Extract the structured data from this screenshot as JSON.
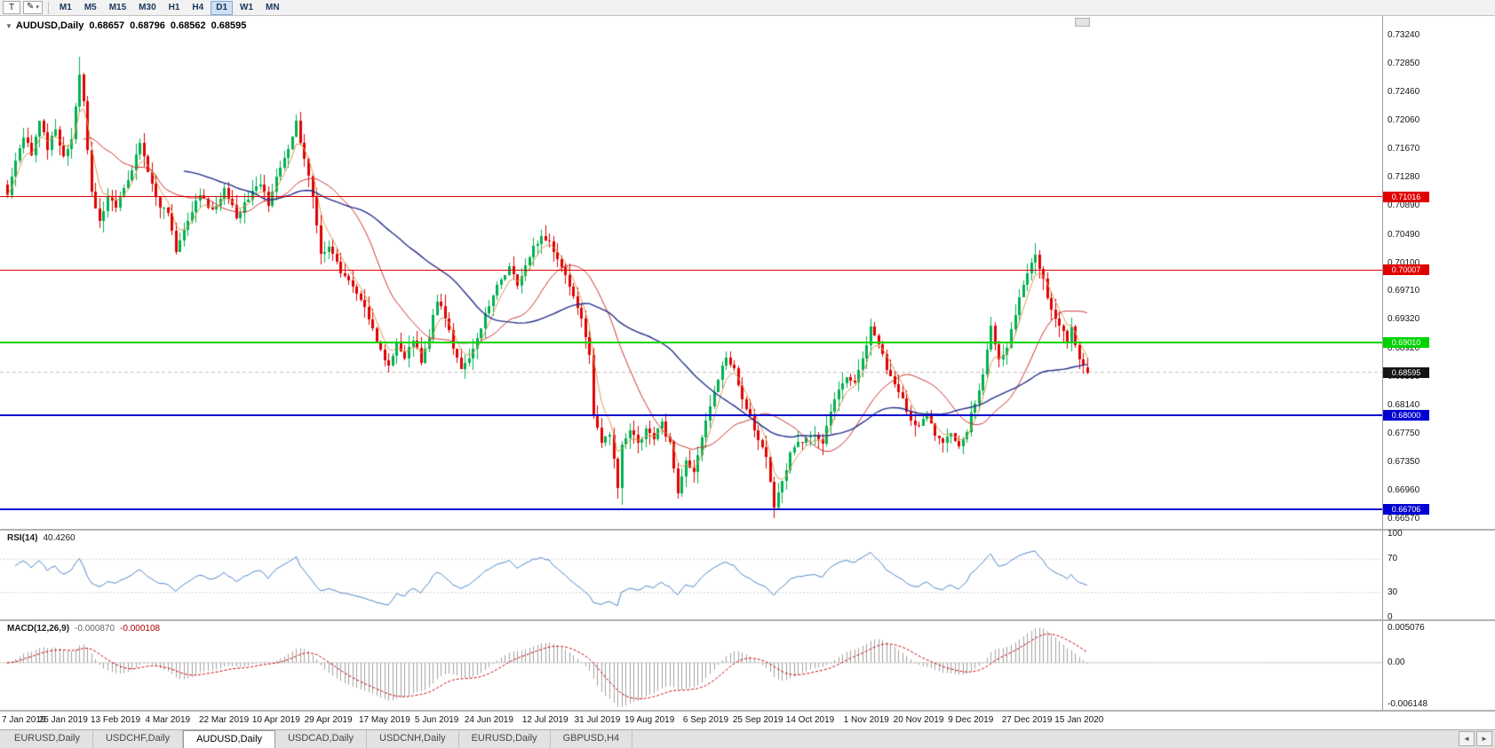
{
  "toolbar": {
    "text_tool_label": "T",
    "timeframes": [
      "M1",
      "M5",
      "M15",
      "M30",
      "H1",
      "H4",
      "D1",
      "W1",
      "MN"
    ],
    "active_timeframe": "D1"
  },
  "icons": {
    "collapse": "▼",
    "caret": "▾",
    "pencil": "✎",
    "scroll_left": "◄",
    "scroll_right": "►"
  },
  "chart": {
    "title": "AUDUSD,Daily",
    "ohlc": {
      "open": "0.68657",
      "high": "0.68796",
      "low": "0.68562",
      "close": "0.68595"
    },
    "current_price": {
      "value": 0.68595,
      "label": "0.68595",
      "color": "#141414"
    },
    "levels": [
      {
        "price": 0.71016,
        "label": "0.71016",
        "color": "#e00000",
        "width": 1
      },
      {
        "price": 0.70007,
        "label": "0.70007",
        "color": "#e00000",
        "width": 1
      },
      {
        "price": 0.6901,
        "label": "0.69010",
        "color": "#00d200",
        "width": 2
      },
      {
        "price": 0.68,
        "label": "0.68000",
        "color": "#0000d0",
        "width": 2
      },
      {
        "price": 0.66706,
        "label": "0.66706",
        "color": "#0000d0",
        "width": 2
      }
    ],
    "y_axis": [
      "0.73240",
      "0.72850",
      "0.72460",
      "0.72060",
      "0.71670",
      "0.71280",
      "0.70890",
      "0.70490",
      "0.70100",
      "0.69710",
      "0.69320",
      "0.68920",
      "0.68530",
      "0.68140",
      "0.67750",
      "0.67350",
      "0.66960",
      "0.66570"
    ],
    "y_range": {
      "top": 0.7324,
      "bottom": 0.6657
    },
    "x_axis": [
      "7 Jan 2019",
      "25 Jan 2019",
      "13 Feb 2019",
      "4 Mar 2019",
      "22 Mar 2019",
      "10 Apr 2019",
      "29 Apr 2019",
      "17 May 2019",
      "5 Jun 2019",
      "24 Jun 2019",
      "12 Jul 2019",
      "31 Jul 2019",
      "19 Aug 2019",
      "6 Sep 2019",
      "25 Sep 2019",
      "14 Oct 2019",
      "1 Nov 2019",
      "20 Nov 2019",
      "9 Dec 2019",
      "27 Dec 2019",
      "15 Jan 2020"
    ]
  },
  "rsi": {
    "label": "RSI(14)",
    "value": "40.4260",
    "axis_labels": [
      "100",
      "70",
      "30",
      "0"
    ],
    "guide_levels": [
      70,
      30
    ]
  },
  "macd": {
    "label": "MACD(12,26,9)",
    "value_main": "-0.000870",
    "value_signal": "-0.000108",
    "axis_labels": [
      "0.005076",
      "0.00",
      "-0.006148"
    ],
    "axis_top": 0.005076,
    "axis_bottom": -0.006148
  },
  "tabs": {
    "items": [
      {
        "label": "EURUSD,Daily",
        "active": false
      },
      {
        "label": "USDCHF,Daily",
        "active": false
      },
      {
        "label": "AUDUSD,Daily",
        "active": true
      },
      {
        "label": "USDCAD,Daily",
        "active": false
      },
      {
        "label": "USDCNH,Daily",
        "active": false
      },
      {
        "label": "EURUSD,Daily",
        "active": false
      },
      {
        "label": "GBPUSD,H4",
        "active": false
      }
    ]
  },
  "chart_data": {
    "type": "candlestick",
    "symbol": "AUDUSD",
    "timeframe": "Daily",
    "bars": 270,
    "price_anchors": [
      [
        0,
        0.7105
      ],
      [
        2,
        0.715
      ],
      [
        4,
        0.7185
      ],
      [
        6,
        0.716
      ],
      [
        8,
        0.7205
      ],
      [
        10,
        0.717
      ],
      [
        12,
        0.7195
      ],
      [
        14,
        0.7155
      ],
      [
        16,
        0.7185
      ],
      [
        18,
        0.727
      ],
      [
        19,
        0.723
      ],
      [
        21,
        0.711
      ],
      [
        23,
        0.7065
      ],
      [
        25,
        0.71
      ],
      [
        27,
        0.7085
      ],
      [
        30,
        0.7125
      ],
      [
        33,
        0.7175
      ],
      [
        36,
        0.712
      ],
      [
        38,
        0.709
      ],
      [
        40,
        0.708
      ],
      [
        42,
        0.7025
      ],
      [
        45,
        0.707
      ],
      [
        48,
        0.7105
      ],
      [
        51,
        0.708
      ],
      [
        54,
        0.711
      ],
      [
        57,
        0.7075
      ],
      [
        60,
        0.71
      ],
      [
        63,
        0.712
      ],
      [
        65,
        0.709
      ],
      [
        67,
        0.713
      ],
      [
        70,
        0.7165
      ],
      [
        72,
        0.7205
      ],
      [
        74,
        0.7155
      ],
      [
        76,
        0.71
      ],
      [
        78,
        0.702
      ],
      [
        80,
        0.7035
      ],
      [
        83,
        0.7
      ],
      [
        86,
        0.6975
      ],
      [
        89,
        0.695
      ],
      [
        91,
        0.692
      ],
      [
        93,
        0.689
      ],
      [
        95,
        0.687
      ],
      [
        97,
        0.69
      ],
      [
        99,
        0.688
      ],
      [
        101,
        0.6905
      ],
      [
        103,
        0.6875
      ],
      [
        105,
        0.691
      ],
      [
        107,
        0.696
      ],
      [
        109,
        0.6935
      ],
      [
        111,
        0.6895
      ],
      [
        113,
        0.6865
      ],
      [
        115,
        0.6875
      ],
      [
        117,
        0.6905
      ],
      [
        119,
        0.694
      ],
      [
        121,
        0.6965
      ],
      [
        123,
        0.699
      ],
      [
        125,
        0.7005
      ],
      [
        127,
        0.698
      ],
      [
        129,
        0.701
      ],
      [
        131,
        0.703
      ],
      [
        133,
        0.705
      ],
      [
        135,
        0.704
      ],
      [
        137,
        0.7015
      ],
      [
        139,
        0.699
      ],
      [
        141,
        0.696
      ],
      [
        143,
        0.693
      ],
      [
        145,
        0.688
      ],
      [
        146,
        0.68
      ],
      [
        148,
        0.676
      ],
      [
        150,
        0.6775
      ],
      [
        152,
        0.67
      ],
      [
        153,
        0.676
      ],
      [
        155,
        0.678
      ],
      [
        157,
        0.676
      ],
      [
        159,
        0.678
      ],
      [
        161,
        0.677
      ],
      [
        163,
        0.679
      ],
      [
        165,
        0.676
      ],
      [
        167,
        0.669
      ],
      [
        169,
        0.6735
      ],
      [
        171,
        0.672
      ],
      [
        173,
        0.677
      ],
      [
        175,
        0.681
      ],
      [
        177,
        0.685
      ],
      [
        179,
        0.688
      ],
      [
        181,
        0.6865
      ],
      [
        183,
        0.6825
      ],
      [
        185,
        0.6795
      ],
      [
        187,
        0.6765
      ],
      [
        189,
        0.6745
      ],
      [
        191,
        0.667
      ],
      [
        193,
        0.671
      ],
      [
        195,
        0.6745
      ],
      [
        197,
        0.676
      ],
      [
        199,
        0.677
      ],
      [
        201,
        0.6775
      ],
      [
        203,
        0.676
      ],
      [
        205,
        0.6805
      ],
      [
        207,
        0.6835
      ],
      [
        209,
        0.685
      ],
      [
        211,
        0.6845
      ],
      [
        213,
        0.6875
      ],
      [
        215,
        0.6925
      ],
      [
        217,
        0.69
      ],
      [
        219,
        0.6865
      ],
      [
        221,
        0.6845
      ],
      [
        223,
        0.682
      ],
      [
        225,
        0.6795
      ],
      [
        227,
        0.6785
      ],
      [
        229,
        0.68
      ],
      [
        231,
        0.6775
      ],
      [
        233,
        0.6765
      ],
      [
        235,
        0.6775
      ],
      [
        237,
        0.676
      ],
      [
        239,
        0.678
      ],
      [
        241,
        0.682
      ],
      [
        243,
        0.6855
      ],
      [
        245,
        0.692
      ],
      [
        247,
        0.6875
      ],
      [
        249,
        0.6895
      ],
      [
        251,
        0.694
      ],
      [
        253,
        0.698
      ],
      [
        255,
        0.701
      ],
      [
        256,
        0.7025
      ],
      [
        258,
        0.6985
      ],
      [
        260,
        0.6945
      ],
      [
        262,
        0.6925
      ],
      [
        264,
        0.6905
      ],
      [
        265,
        0.692
      ],
      [
        266,
        0.69
      ],
      [
        267,
        0.688
      ],
      [
        268,
        0.6865
      ],
      [
        269,
        0.68595
      ]
    ],
    "spikes": {
      "highs": [
        [
          18,
          0.7295
        ],
        [
          256,
          0.7032
        ]
      ],
      "lows": [
        [
          153,
          0.6677
        ],
        [
          191,
          0.667
        ]
      ]
    },
    "date_tick_indices": [
      0,
      14,
      27,
      40,
      54,
      67,
      80,
      94,
      107,
      120,
      134,
      147,
      160,
      174,
      187,
      200,
      214,
      227,
      240,
      254,
      267
    ],
    "moving_averages": [
      {
        "name": "fast",
        "type": "ema",
        "period": 5,
        "color": "#d79b53",
        "width": 1
      },
      {
        "name": "medium",
        "type": "sma",
        "period": 20,
        "color": "#cc3333",
        "width": 1
      },
      {
        "name": "slow",
        "type": "sma",
        "period": 45,
        "color": "#24308c",
        "width": 1.4
      }
    ],
    "indicators": [
      {
        "name": "RSI",
        "period": 14,
        "current": 40.426
      },
      {
        "name": "MACD",
        "fast": 12,
        "slow": 26,
        "signal": 9,
        "current_main": -0.00087,
        "current_signal": -0.000108
      }
    ],
    "colors": {
      "up": "#00b050",
      "down": "#e00000",
      "rsi_line": "#4f86c6",
      "rsi_guides": "#cfcfcf",
      "macd_hist": "#a0a0a0",
      "macd_signal": "#cc0000",
      "macd_zero": "#c8c8c8",
      "current_price_line": "#c0c0c0"
    }
  }
}
